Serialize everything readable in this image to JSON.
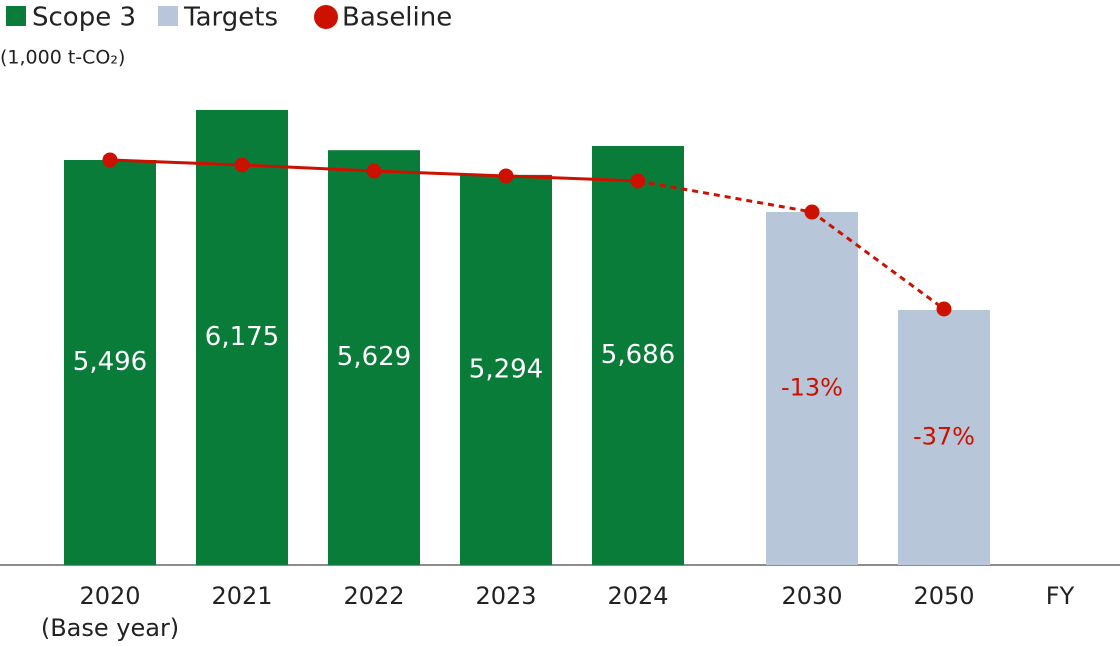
{
  "chart_data": {
    "type": "bar",
    "y_label": "(1,000 t-CO₂)",
    "x_label": "FY",
    "categories": [
      "2020\n(Base year)",
      "2021",
      "2022",
      "2023",
      "2024",
      "2030",
      "2050"
    ],
    "series": [
      {
        "name": "Scope 3",
        "color": "#0a7c3a",
        "kind": "bar",
        "values": [
          5496,
          6175,
          5629,
          5294,
          5686,
          null,
          null
        ],
        "value_labels": [
          "5,496",
          "6,175",
          "5,629",
          "5,294",
          "5,686",
          null,
          null
        ]
      },
      {
        "name": "Targets",
        "color": "#b7c6d8",
        "kind": "bar",
        "values": [
          null,
          null,
          null,
          null,
          null,
          4790,
          3460
        ]
      },
      {
        "name": "Baseline",
        "color": "#cc1100",
        "kind": "line",
        "values": [
          5496,
          5428,
          5346,
          5279,
          5211,
          4790,
          3474
        ]
      }
    ],
    "annotations": [
      "-13%",
      "-37%"
    ],
    "ylim": [
      0,
      6500
    ]
  }
}
